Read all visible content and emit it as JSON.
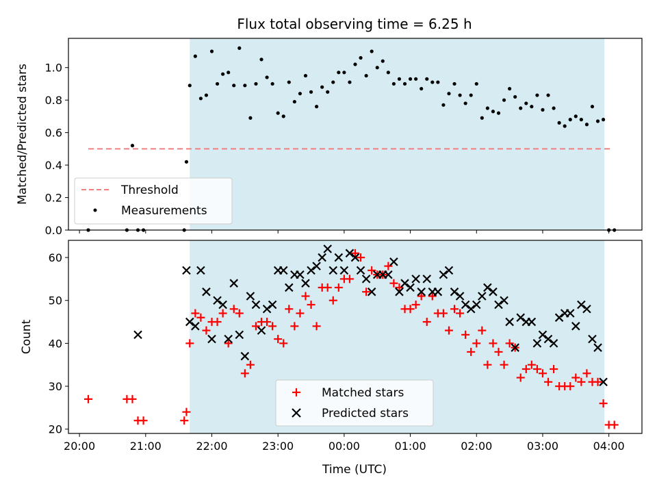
{
  "chart_data": {
    "title": "Flux total observing time = 6.25 h",
    "shaded_interval": {
      "start": "21:40",
      "end": "03:56",
      "color": "#add8e6"
    },
    "x_axis": {
      "label": "Time (UTC)",
      "unit": "HH:MM",
      "range": [
        "19:50",
        "04:30"
      ],
      "ticks": [
        "20:00",
        "21:00",
        "22:00",
        "23:00",
        "00:00",
        "01:00",
        "02:00",
        "03:00",
        "04:00"
      ]
    },
    "panels": [
      {
        "type": "scatter",
        "ylabel": "Matched/Predicted stars",
        "ylim": [
          0,
          1.18
        ],
        "yticks": [
          "0.0",
          "0.2",
          "0.4",
          "0.6",
          "0.8",
          "1.0"
        ],
        "ytick_values": [
          0,
          0.2,
          0.4,
          0.6,
          0.8,
          1.0
        ],
        "legend_position": "lower-left",
        "series": [
          {
            "name": "Threshold",
            "kind": "dashed-line",
            "color": "#f08080",
            "x": [
              "20:08",
              "04:03"
            ],
            "y": [
              0.5,
              0.5
            ]
          },
          {
            "name": "Measurements",
            "kind": "dots",
            "color": "#000000",
            "x": [
              "20:08",
              "20:43",
              "20:48",
              "20:53",
              "20:58",
              "21:35",
              "21:37",
              "21:40",
              "21:45",
              "21:50",
              "21:55",
              "22:00",
              "22:05",
              "22:10",
              "22:15",
              "22:20",
              "22:25",
              "22:30",
              "22:35",
              "22:40",
              "22:45",
              "22:50",
              "22:55",
              "23:00",
              "23:05",
              "23:10",
              "23:15",
              "23:20",
              "23:25",
              "23:30",
              "23:35",
              "23:40",
              "23:45",
              "23:50",
              "23:55",
              "00:00",
              "00:05",
              "00:10",
              "00:15",
              "00:20",
              "00:25",
              "00:30",
              "00:35",
              "00:40",
              "00:45",
              "00:50",
              "00:55",
              "01:00",
              "01:05",
              "01:10",
              "01:15",
              "01:20",
              "01:25",
              "01:30",
              "01:35",
              "01:40",
              "01:45",
              "01:50",
              "01:55",
              "02:00",
              "02:05",
              "02:10",
              "02:15",
              "02:20",
              "02:25",
              "02:30",
              "02:35",
              "02:40",
              "02:45",
              "02:50",
              "02:55",
              "03:00",
              "03:05",
              "03:10",
              "03:15",
              "03:20",
              "03:25",
              "03:30",
              "03:35",
              "03:40",
              "03:45",
              "03:50",
              "03:55",
              "04:00",
              "04:05"
            ],
            "y": [
              0.0,
              0.0,
              0.52,
              0.0,
              0.0,
              0.0,
              0.42,
              0.89,
              1.07,
              0.81,
              0.83,
              1.1,
              0.9,
              0.96,
              0.97,
              0.89,
              1.12,
              0.89,
              0.69,
              0.9,
              1.05,
              0.94,
              0.9,
              0.72,
              0.7,
              0.91,
              0.79,
              0.84,
              0.95,
              0.85,
              0.76,
              0.88,
              0.85,
              0.91,
              0.97,
              0.97,
              0.91,
              1.02,
              1.06,
              0.95,
              1.1,
              1.0,
              1.04,
              0.97,
              0.9,
              0.93,
              0.9,
              0.93,
              0.93,
              0.87,
              0.93,
              0.91,
              0.91,
              0.77,
              0.84,
              0.9,
              0.83,
              0.78,
              0.83,
              0.9,
              0.69,
              0.75,
              0.73,
              0.72,
              0.8,
              0.87,
              0.82,
              0.75,
              0.78,
              0.76,
              0.83,
              0.74,
              0.83,
              0.75,
              0.66,
              0.64,
              0.68,
              0.7,
              0.68,
              0.65,
              0.76,
              0.67,
              0.68,
              0.0,
              0.0
            ]
          }
        ]
      },
      {
        "type": "scatter",
        "ylabel": "Count",
        "ylim": [
          19,
          64
        ],
        "yticks": [
          "20",
          "30",
          "40",
          "50",
          "60"
        ],
        "ytick_values": [
          20,
          30,
          40,
          50,
          60
        ],
        "legend_position": "lower-center",
        "series": [
          {
            "name": "Matched stars",
            "kind": "plus",
            "color": "#ff0000",
            "x": [
              "20:08",
              "20:43",
              "20:48",
              "20:53",
              "20:58",
              "21:35",
              "21:37",
              "21:40",
              "21:45",
              "21:50",
              "21:55",
              "22:00",
              "22:05",
              "22:10",
              "22:15",
              "22:20",
              "22:25",
              "22:30",
              "22:35",
              "22:40",
              "22:45",
              "22:50",
              "22:55",
              "23:00",
              "23:05",
              "23:10",
              "23:15",
              "23:20",
              "23:25",
              "23:30",
              "23:35",
              "23:40",
              "23:45",
              "23:50",
              "23:55",
              "00:00",
              "00:05",
              "00:10",
              "00:15",
              "00:20",
              "00:25",
              "00:30",
              "00:35",
              "00:40",
              "00:45",
              "00:50",
              "00:55",
              "01:00",
              "01:05",
              "01:10",
              "01:15",
              "01:20",
              "01:25",
              "01:30",
              "01:35",
              "01:40",
              "01:45",
              "01:50",
              "01:55",
              "02:00",
              "02:05",
              "02:10",
              "02:15",
              "02:20",
              "02:25",
              "02:30",
              "02:35",
              "02:40",
              "02:45",
              "02:50",
              "02:55",
              "03:00",
              "03:05",
              "03:10",
              "03:15",
              "03:20",
              "03:25",
              "03:30",
              "03:35",
              "03:40",
              "03:45",
              "03:50",
              "03:55",
              "04:00",
              "04:05"
            ],
            "y": [
              27,
              27,
              27,
              22,
              22,
              22,
              24,
              40,
              47,
              46,
              43,
              45,
              45,
              47,
              40,
              48,
              47,
              33,
              35,
              44,
              45,
              45,
              44,
              41,
              40,
              48,
              44,
              47,
              51,
              49,
              44,
              53,
              53,
              50,
              53,
              55,
              55,
              61,
              60,
              52,
              57,
              56,
              56,
              58,
              54,
              53,
              48,
              48,
              49,
              51,
              45,
              51,
              47,
              47,
              43,
              48,
              47,
              42,
              38,
              40,
              43,
              35,
              40,
              38,
              35,
              40,
              39,
              32,
              34,
              35,
              34,
              33,
              31,
              34,
              30,
              30,
              30,
              32,
              31,
              33,
              31,
              31,
              26,
              21,
              21
            ]
          },
          {
            "name": "Predicted stars",
            "kind": "cross",
            "color": "#000000",
            "x": [
              "20:53",
              "21:37",
              "21:40",
              "21:45",
              "21:50",
              "21:55",
              "22:00",
              "22:05",
              "22:10",
              "22:15",
              "22:20",
              "22:25",
              "22:30",
              "22:35",
              "22:40",
              "22:45",
              "22:50",
              "22:55",
              "23:00",
              "23:05",
              "23:10",
              "23:15",
              "23:20",
              "23:25",
              "23:30",
              "23:35",
              "23:40",
              "23:45",
              "23:50",
              "23:55",
              "00:00",
              "00:05",
              "00:10",
              "00:15",
              "00:20",
              "00:25",
              "00:30",
              "00:35",
              "00:40",
              "00:45",
              "00:50",
              "00:55",
              "01:00",
              "01:05",
              "01:10",
              "01:15",
              "01:20",
              "01:25",
              "01:30",
              "01:35",
              "01:40",
              "01:45",
              "01:50",
              "01:55",
              "02:00",
              "02:05",
              "02:10",
              "02:15",
              "02:20",
              "02:25",
              "02:30",
              "02:35",
              "02:40",
              "02:45",
              "02:50",
              "02:55",
              "03:00",
              "03:05",
              "03:10",
              "03:15",
              "03:20",
              "03:25",
              "03:30",
              "03:35",
              "03:40",
              "03:45",
              "03:50",
              "03:55"
            ],
            "y": [
              42,
              57,
              45,
              44,
              57,
              52,
              41,
              50,
              49,
              41,
              54,
              42,
              37,
              51,
              49,
              43,
              48,
              49,
              57,
              57,
              53,
              56,
              56,
              54,
              57,
              58,
              60,
              62,
              57,
              60,
              57,
              61,
              60,
              57,
              55,
              52,
              56,
              56,
              56,
              59,
              52,
              54,
              53,
              55,
              52,
              55,
              52,
              52,
              56,
              57,
              52,
              51,
              49,
              48,
              49,
              51,
              53,
              52,
              49,
              50,
              45,
              39,
              46,
              45,
              45,
              40,
              42,
              41,
              40,
              46,
              47,
              47,
              44,
              49,
              48,
              41,
              39,
              31
            ]
          }
        ]
      }
    ]
  }
}
